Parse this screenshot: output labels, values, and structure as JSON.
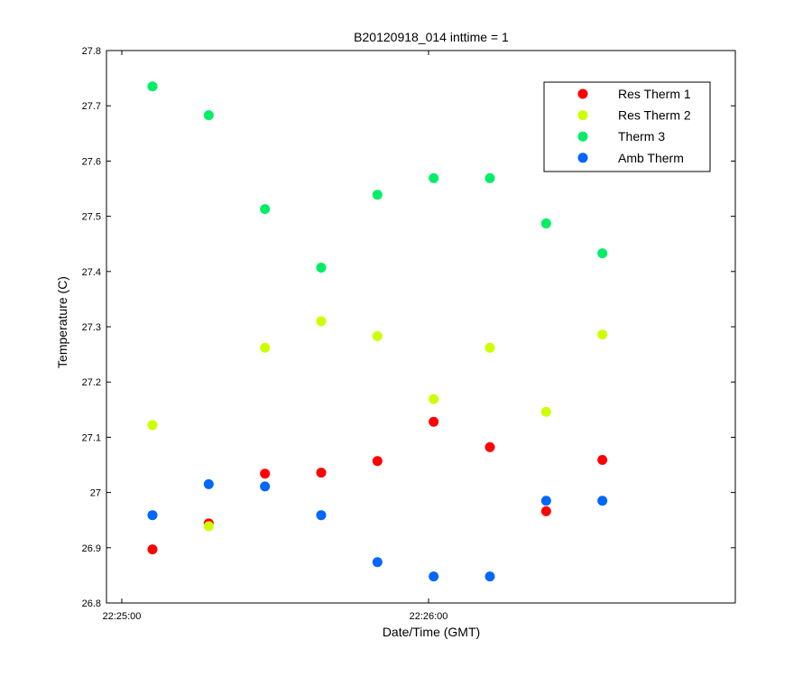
{
  "chart_data": {
    "type": "scatter",
    "title": "B20120918_014 inttime = 1",
    "xlabel": "Date/Time (GMT)",
    "ylabel": "Temperature (C)",
    "xlim": [
      "22:24:57",
      "22:27:00"
    ],
    "ylim": [
      26.8,
      27.8
    ],
    "x_ticks": [
      "22:25:00",
      "22:26:00"
    ],
    "y_ticks": [
      "26.8",
      "26.9",
      "27",
      "27.1",
      "27.2",
      "27.3",
      "27.4",
      "27.5",
      "27.6",
      "27.7",
      "27.8"
    ],
    "x": [
      "22:25:06",
      "22:25:17",
      "22:25:28",
      "22:25:39",
      "22:25:50",
      "22:26:01",
      "22:26:12",
      "22:26:23",
      "22:26:34"
    ],
    "legend_position": "top-right",
    "grid": false,
    "series": [
      {
        "name": "Res Therm 1",
        "color": "#ff0000",
        "values": [
          26.897,
          26.944,
          27.034,
          27.036,
          27.057,
          27.128,
          27.082,
          26.966,
          27.059
        ]
      },
      {
        "name": "Res Therm 2",
        "color": "#ccff00",
        "values": [
          27.122,
          26.939,
          27.262,
          27.31,
          27.283,
          27.169,
          27.262,
          27.146,
          27.286
        ]
      },
      {
        "name": "Therm 3",
        "color": "#00ee66",
        "values": [
          27.735,
          27.683,
          27.513,
          27.407,
          27.539,
          27.569,
          27.569,
          27.487,
          27.433
        ]
      },
      {
        "name": "Amb Therm",
        "color": "#0066ff",
        "values": [
          26.959,
          27.015,
          27.011,
          26.959,
          26.874,
          26.848,
          26.848,
          26.985,
          26.985
        ]
      }
    ]
  }
}
